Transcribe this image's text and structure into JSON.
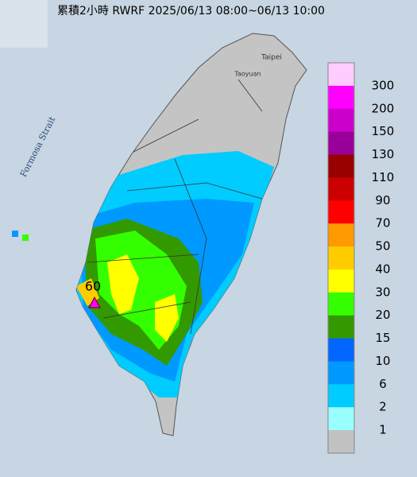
{
  "header": {
    "title": "累積2小時 RWRF 2025/06/13 08:00~06/13 10:00"
  },
  "map": {
    "labels": [
      "Taipei",
      "Taoyuan",
      "Formosa Strait"
    ],
    "station_value": "60"
  },
  "legend": {
    "colors": [
      "#ffccff",
      "#ff00ff",
      "#cc00cc",
      "#990099",
      "#990000",
      "#cc0000",
      "#ff0000",
      "#ff9900",
      "#ffcc00",
      "#ffff00",
      "#33ff00",
      "#339900",
      "#0066ff",
      "#0099ff",
      "#00ccff",
      "#99ffff",
      "#c1c1c1"
    ],
    "labels": [
      300,
      200,
      150,
      130,
      110,
      90,
      70,
      50,
      40,
      30,
      20,
      15,
      10,
      6,
      2,
      1
    ]
  }
}
